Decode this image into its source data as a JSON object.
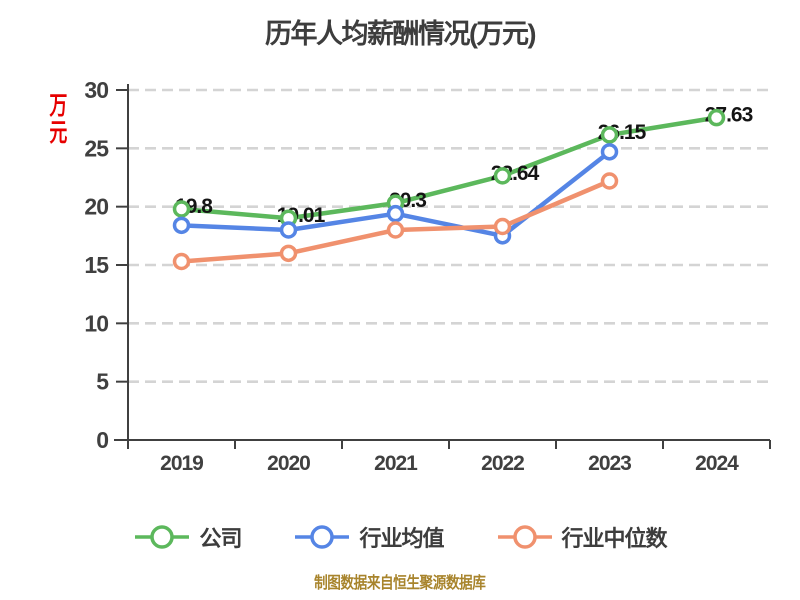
{
  "chart_data": {
    "type": "line",
    "title": "历年人均薪酬情况(万元)",
    "x": [
      "2019",
      "2020",
      "2021",
      "2022",
      "2023",
      "2024"
    ],
    "ylabel": "万元",
    "ylim": [
      0,
      30
    ],
    "yticks": [
      0,
      5,
      10,
      15,
      20,
      25,
      30
    ],
    "grid": "horizontal-dashed",
    "legend_position": "bottom",
    "series": [
      {
        "name": "公司",
        "color": "#5cb85c",
        "values": [
          19.8,
          19.01,
          20.3,
          22.64,
          26.15,
          27.63
        ],
        "point_labels": [
          "19.8",
          "19.01",
          "20.3",
          "22.64",
          "26.15",
          "27.63"
        ]
      },
      {
        "name": "行业均值",
        "color": "#5585e5",
        "values": [
          18.4,
          18.0,
          19.4,
          17.5,
          24.7,
          null
        ],
        "point_labels": null
      },
      {
        "name": "行业中位数",
        "color": "#f0916e",
        "values": [
          15.3,
          16.0,
          18.0,
          18.3,
          22.2,
          null
        ],
        "point_labels": null
      }
    ]
  },
  "footer": {
    "source_note": "制图数据来自恒生聚源数据库"
  },
  "colors": {
    "axis": "#404040",
    "grid": "#d4d4d4",
    "title": "#3d3d3d",
    "unit_label": "#e60000",
    "caption": "#a8842c",
    "marker_fill": "#ffffff"
  }
}
